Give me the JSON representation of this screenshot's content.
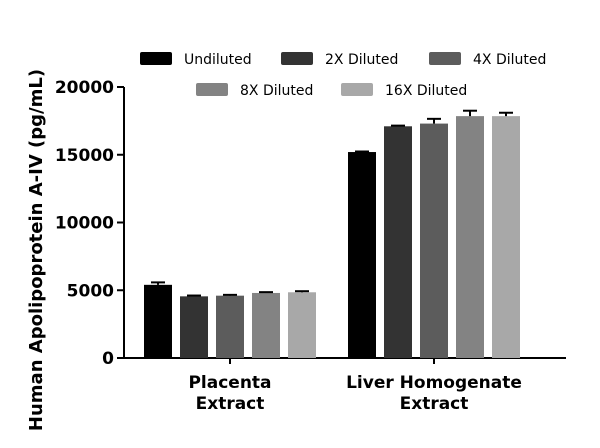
{
  "chart_data": {
    "type": "bar",
    "title": "",
    "xlabel": "",
    "ylabel": "Human Apolipoprotein A-IV (pg/mL)",
    "ylim": [
      0,
      20000
    ],
    "yticks": [
      "0",
      "5000",
      "10000",
      "15000",
      "20000"
    ],
    "ytick_values": [
      0,
      5000,
      10000,
      15000,
      20000
    ],
    "categories": [
      [
        "Placenta",
        "Extract"
      ],
      [
        "Liver Homogenate",
        "Extract"
      ]
    ],
    "series": [
      {
        "name": "Undiluted",
        "color": "#000000",
        "values": [
          5400,
          15200
        ],
        "errors": [
          180,
          40
        ]
      },
      {
        "name": "2X Diluted",
        "color": "#333333",
        "values": [
          4550,
          17100
        ],
        "errors": [
          60,
          50
        ]
      },
      {
        "name": "4X Diluted",
        "color": "#5c5c5c",
        "values": [
          4600,
          17300
        ],
        "errors": [
          60,
          350
        ]
      },
      {
        "name": "8X Diluted",
        "color": "#838383",
        "values": [
          4800,
          17850
        ],
        "errors": [
          60,
          400
        ]
      },
      {
        "name": "16X Diluted",
        "color": "#a8a8a8",
        "values": [
          4850,
          17850
        ],
        "errors": [
          80,
          250
        ]
      }
    ],
    "legend_position": "top"
  }
}
